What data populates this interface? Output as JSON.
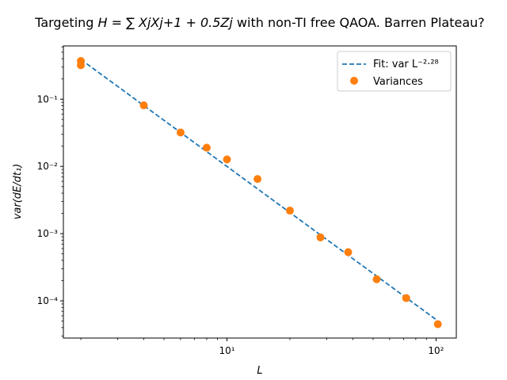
{
  "chart_data": {
    "type": "scatter",
    "title_parts": {
      "prefix": "Targeting ",
      "formula": "H = ∑ XjXj+1 + 0.5Zj",
      "suffix": " with non-TI free QAOA. Barren Plateau?"
    },
    "xlabel": "L",
    "ylabel": "var(dE/dt₁)",
    "xscale": "log",
    "yscale": "log",
    "xlim": [
      1.65,
      125
    ],
    "ylim": [
      2.8e-05,
      0.62
    ],
    "x_ticks": [
      {
        "value": 10,
        "label": "10¹"
      },
      {
        "value": 100,
        "label": "10²"
      }
    ],
    "y_ticks": [
      {
        "value": 0.0001,
        "label": "10⁻⁴"
      },
      {
        "value": 0.001,
        "label": "10⁻³"
      },
      {
        "value": 0.01,
        "label": "10⁻²"
      },
      {
        "value": 0.1,
        "label": "10⁻¹"
      }
    ],
    "grid": false,
    "legend_position": "top-right",
    "series": [
      {
        "name": "Fit: var L^-2.28",
        "legend_label": "Fit: var L⁻²·²⁸",
        "kind": "line",
        "style": "dashed",
        "color": "#1f77b4",
        "x": [
          2,
          102
        ],
        "y": [
          0.39,
          5.04e-05
        ]
      },
      {
        "name": "Variances",
        "legend_label": "Variances",
        "kind": "scatter",
        "color": "#ff7f0e",
        "x": [
          2,
          2,
          4,
          6,
          8,
          10,
          14,
          20,
          28,
          38,
          52,
          72,
          102
        ],
        "y": [
          0.37,
          0.32,
          0.081,
          0.032,
          0.019,
          0.0127,
          0.0065,
          0.0022,
          0.00088,
          0.00053,
          0.00021,
          0.00011,
          4.5e-05
        ]
      }
    ]
  }
}
